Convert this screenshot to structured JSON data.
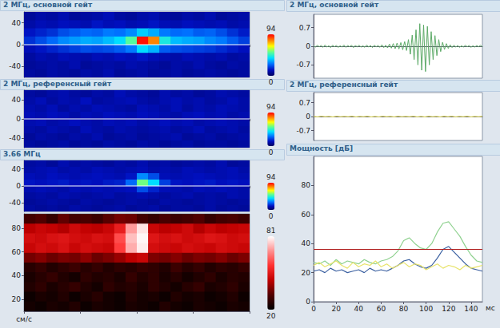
{
  "chart_data": [
    {
      "type": "heatmap",
      "title": "2 МГц, основной гейт",
      "ylim": [
        -60,
        60
      ],
      "yticks": [
        -40,
        0,
        40
      ],
      "baseline": 0,
      "tick_labels": "y",
      "grid": false,
      "colorbar": {
        "range": [
          0,
          94
        ]
      },
      "cells": [
        [
          8,
          10,
          9,
          11,
          8,
          9,
          10,
          12,
          9,
          8,
          10,
          11,
          9,
          8,
          10,
          9,
          11,
          8,
          9,
          10
        ],
        [
          10,
          12,
          11,
          13,
          12,
          11,
          14,
          12,
          13,
          11,
          12,
          14,
          12,
          11,
          13,
          12,
          11,
          12,
          10,
          11
        ],
        [
          14,
          16,
          18,
          22,
          24,
          26,
          25,
          28,
          27,
          30,
          38,
          34,
          28,
          26,
          27,
          24,
          25,
          22,
          18,
          15
        ],
        [
          18,
          22,
          26,
          30,
          32,
          34,
          33,
          36,
          40,
          52,
          92,
          80,
          44,
          36,
          34,
          33,
          30,
          28,
          24,
          20
        ],
        [
          12,
          14,
          16,
          18,
          20,
          22,
          21,
          22,
          24,
          28,
          40,
          35,
          24,
          22,
          21,
          20,
          19,
          17,
          15,
          13
        ],
        [
          9,
          11,
          10,
          12,
          11,
          10,
          12,
          11,
          13,
          12,
          14,
          12,
          11,
          10,
          12,
          11,
          10,
          11,
          9,
          10
        ],
        [
          8,
          9,
          10,
          9,
          11,
          8,
          9,
          10,
          9,
          11,
          10,
          9,
          8,
          10,
          9,
          11,
          9,
          8,
          10,
          9
        ],
        [
          9,
          8,
          10,
          9,
          8,
          10,
          9,
          11,
          8,
          9,
          10,
          8,
          9,
          10,
          8,
          9,
          10,
          9,
          8,
          9
        ]
      ]
    },
    {
      "type": "heatmap",
      "title": "2 МГц, референсный гейт",
      "ylim": [
        -60,
        60
      ],
      "yticks": [
        -40,
        0,
        40
      ],
      "baseline": 0,
      "tick_labels": "y",
      "grid": false,
      "colorbar": {
        "range": [
          0,
          94
        ]
      },
      "cells": [
        [
          9,
          8,
          10,
          11,
          9,
          8,
          10,
          9,
          12,
          10,
          9,
          8,
          11,
          9,
          10,
          8,
          9,
          11,
          10,
          9
        ],
        [
          10,
          12,
          9,
          11,
          10,
          13,
          9,
          10,
          11,
          12,
          10,
          9,
          11,
          12,
          10,
          11,
          9,
          10,
          12,
          10
        ],
        [
          11,
          10,
          12,
          9,
          11,
          10,
          12,
          11,
          10,
          9,
          12,
          11,
          10,
          12,
          9,
          11,
          10,
          12,
          11,
          10
        ],
        [
          12,
          11,
          13,
          12,
          10,
          12,
          11,
          13,
          12,
          11,
          13,
          12,
          11,
          10,
          12,
          13,
          11,
          12,
          10,
          11
        ],
        [
          11,
          12,
          10,
          11,
          13,
          11,
          10,
          12,
          11,
          12,
          10,
          11,
          13,
          11,
          12,
          10,
          11,
          12,
          11,
          10
        ],
        [
          10,
          9,
          11,
          10,
          9,
          12,
          10,
          9,
          11,
          10,
          9,
          10,
          11,
          9,
          10,
          12,
          9,
          10,
          11,
          9
        ],
        [
          8,
          10,
          9,
          8,
          10,
          9,
          11,
          8,
          9,
          10,
          8,
          9,
          10,
          11,
          8,
          9,
          10,
          8,
          9,
          10
        ],
        [
          9,
          8,
          9,
          10,
          8,
          9,
          8,
          10,
          9,
          8,
          10,
          9,
          8,
          9,
          10,
          8,
          9,
          9,
          8,
          9
        ]
      ]
    },
    {
      "type": "heatmap",
      "title": "3.66 МГц",
      "ylim": [
        -60,
        60
      ],
      "yticks": [
        -40,
        0,
        40
      ],
      "baseline": 0,
      "tick_labels": "y",
      "grid": false,
      "colorbar": {
        "range": [
          0,
          94
        ]
      },
      "cells": [
        [
          9,
          10,
          8,
          11,
          9,
          10,
          9,
          8,
          10,
          9,
          11,
          9,
          10,
          8,
          9,
          10,
          9,
          11,
          8,
          9
        ],
        [
          10,
          11,
          12,
          10,
          11,
          10,
          12,
          11,
          10,
          11,
          12,
          10,
          11,
          10,
          12,
          11,
          10,
          11,
          12,
          10
        ],
        [
          12,
          11,
          13,
          12,
          11,
          12,
          13,
          12,
          11,
          14,
          30,
          22,
          12,
          11,
          12,
          13,
          12,
          11,
          12,
          11
        ],
        [
          14,
          13,
          14,
          15,
          13,
          14,
          13,
          15,
          16,
          26,
          55,
          40,
          20,
          14,
          13,
          14,
          15,
          13,
          14,
          13
        ],
        [
          11,
          12,
          11,
          10,
          12,
          11,
          12,
          11,
          12,
          13,
          22,
          16,
          12,
          11,
          10,
          12,
          11,
          12,
          11,
          10
        ],
        [
          9,
          10,
          9,
          11,
          10,
          9,
          10,
          11,
          9,
          10,
          11,
          10,
          9,
          10,
          11,
          9,
          10,
          9,
          11,
          10
        ],
        [
          8,
          9,
          10,
          9,
          8,
          10,
          9,
          8,
          9,
          10,
          9,
          8,
          10,
          9,
          8,
          9,
          10,
          9,
          8,
          9
        ],
        [
          9,
          8,
          9,
          8,
          10,
          9,
          8,
          9,
          10,
          8,
          9,
          10,
          8,
          9,
          9,
          8,
          10,
          8,
          9,
          8
        ]
      ]
    },
    {
      "type": "heatmap",
      "ylabel": "см/с",
      "ylim": [
        10,
        92
      ],
      "yticks": [
        20,
        40,
        60,
        80
      ],
      "tick_labels": "y",
      "grid": false,
      "colorbar": {
        "range": [
          20,
          81
        ]
      },
      "cells": [
        [
          30,
          32,
          28,
          34,
          30,
          31,
          29,
          33,
          36,
          35,
          30,
          28,
          31,
          29,
          30,
          32,
          28,
          30,
          31,
          29
        ],
        [
          44,
          46,
          45,
          43,
          47,
          45,
          44,
          46,
          52,
          70,
          78,
          46,
          44,
          45,
          47,
          43,
          46,
          44,
          45,
          46
        ],
        [
          48,
          47,
          49,
          50,
          48,
          47,
          49,
          48,
          60,
          74,
          80,
          50,
          48,
          49,
          47,
          48,
          50,
          49,
          47,
          48
        ],
        [
          46,
          48,
          47,
          49,
          46,
          48,
          47,
          46,
          58,
          72,
          79,
          48,
          47,
          46,
          48,
          47,
          46,
          48,
          47,
          46
        ],
        [
          36,
          38,
          35,
          37,
          36,
          39,
          35,
          37,
          40,
          44,
          46,
          37,
          36,
          38,
          35,
          37,
          36,
          38,
          35,
          37
        ],
        [
          26,
          28,
          25,
          27,
          29,
          26,
          28,
          25,
          27,
          26,
          28,
          27,
          25,
          29,
          26,
          28,
          25,
          27,
          26,
          28
        ],
        [
          24,
          26,
          28,
          25,
          23,
          27,
          25,
          26,
          24,
          28,
          25,
          27,
          24,
          26,
          23,
          25,
          27,
          24,
          26,
          25
        ],
        [
          25,
          27,
          24,
          26,
          28,
          25,
          23,
          27,
          25,
          26,
          24,
          27,
          25,
          23,
          26,
          28,
          24,
          25,
          27,
          24
        ],
        [
          22,
          24,
          23,
          25,
          22,
          24,
          26,
          23,
          22,
          25,
          23,
          24,
          22,
          25,
          23,
          24,
          22,
          23,
          25,
          22
        ],
        [
          23,
          22,
          24,
          23,
          25,
          22,
          24,
          23,
          22,
          24,
          23,
          22,
          25,
          23,
          22,
          24,
          23,
          22,
          24,
          23
        ]
      ]
    },
    {
      "type": "line",
      "title": "2 МГц, основной гейт",
      "ylim": [
        -1.2,
        1.2
      ],
      "yticks": [
        -0.7,
        0,
        0.7
      ],
      "tick_labels": "y",
      "grid": false,
      "color": "#5daa68",
      "values": [
        0.02,
        -0.03,
        0.04,
        -0.02,
        0.03,
        -0.04,
        0.05,
        -0.03,
        0.02,
        -0.05,
        0.04,
        -0.02,
        0.03,
        -0.04,
        0.02,
        -0.03,
        0.05,
        -0.04,
        0.03,
        -0.02,
        0.04,
        -0.05,
        0.03,
        -0.02,
        0.04,
        -0.03,
        0.02,
        -0.04,
        0.05,
        -0.03,
        0.03,
        -0.05,
        0.04,
        -0.02,
        0.03,
        -0.04,
        0.06,
        -0.05,
        0.04,
        -0.06,
        0.08,
        -0.07,
        0.1,
        -0.09,
        0.12,
        -0.1,
        0.14,
        -0.13,
        0.18,
        -0.16,
        0.25,
        -0.3,
        0.42,
        -0.5,
        0.62,
        -0.7,
        0.85,
        -0.9,
        0.8,
        -0.95,
        0.75,
        -0.7,
        0.55,
        -0.5,
        0.4,
        -0.35,
        0.25,
        -0.2,
        0.15,
        -0.12,
        0.1,
        -0.08,
        0.06,
        -0.05,
        0.04,
        -0.03,
        0.03,
        -0.04,
        0.02,
        -0.03,
        0.04,
        -0.02,
        0.03,
        -0.04,
        0.02,
        -0.03,
        0.03,
        -0.02,
        0.04,
        -0.03
      ]
    },
    {
      "type": "line",
      "title": "2 МГц, референсный гейт",
      "ylim": [
        -1.2,
        1.2
      ],
      "yticks": [
        -0.7,
        0,
        0.7
      ],
      "tick_labels": "y",
      "grid": false,
      "color": "#e3dc4f",
      "values": [
        0.01,
        -0.02,
        0.02,
        -0.01,
        0.01,
        -0.02,
        0.02,
        -0.01,
        0.01,
        -0.01,
        0.02,
        -0.02,
        0.01,
        -0.01,
        0.02,
        -0.02,
        0.01,
        -0.02,
        0.02,
        -0.01,
        0.01,
        -0.02,
        0.02,
        -0.01,
        0.01,
        -0.01,
        0.02,
        -0.02,
        0.01,
        -0.02,
        0.02,
        -0.01,
        0.01,
        -0.02,
        0.02,
        -0.01,
        0.02,
        -0.02,
        0.01,
        -0.01,
        0.02,
        -0.02,
        0.01,
        -0.01,
        0.01
      ]
    },
    {
      "type": "line",
      "title": "Мощность [дБ]",
      "xlabel": "мс",
      "tick_labels": true,
      "grid": false,
      "x": [
        0,
        5,
        10,
        15,
        20,
        25,
        30,
        35,
        40,
        45,
        50,
        55,
        60,
        65,
        70,
        75,
        80,
        85,
        90,
        95,
        100,
        105,
        110,
        115,
        120,
        125,
        130,
        135,
        140,
        145,
        150
      ],
      "xlim": [
        0,
        150
      ],
      "xticks": [
        0,
        20,
        40,
        60,
        80,
        100,
        120,
        140
      ],
      "ylim": [
        0,
        100
      ],
      "yticks": [
        0,
        20,
        40,
        60,
        80
      ],
      "series": [
        {
          "color": "#8fd18f",
          "values": [
            27,
            26,
            28,
            25,
            29,
            26,
            28,
            27,
            26,
            29,
            27,
            26,
            28,
            29,
            31,
            35,
            42,
            44,
            40,
            37,
            36,
            40,
            48,
            54,
            55,
            50,
            45,
            38,
            32,
            28,
            27
          ]
        },
        {
          "color": "#3a5fa0",
          "values": [
            21,
            22,
            20,
            23,
            21,
            22,
            20,
            21,
            22,
            20,
            23,
            21,
            22,
            21,
            23,
            25,
            28,
            29,
            26,
            24,
            23,
            25,
            30,
            36,
            38,
            34,
            30,
            26,
            23,
            22,
            21
          ]
        },
        {
          "color": "#e8e36a",
          "values": [
            25,
            27,
            24,
            26,
            28,
            25,
            23,
            27,
            24,
            26,
            25,
            28,
            24,
            26,
            23,
            25,
            27,
            24,
            26,
            25,
            22,
            24,
            26,
            23,
            25,
            24,
            22,
            25,
            23,
            24,
            25
          ]
        },
        {
          "color": "#b22222",
          "values": [
            36,
            36,
            36,
            36,
            36,
            36,
            36,
            36,
            36,
            36,
            36,
            36,
            36,
            36,
            36,
            36,
            36,
            36,
            36,
            36,
            36,
            36,
            36,
            36,
            36,
            36,
            36,
            36,
            36,
            36,
            36
          ]
        }
      ]
    }
  ]
}
